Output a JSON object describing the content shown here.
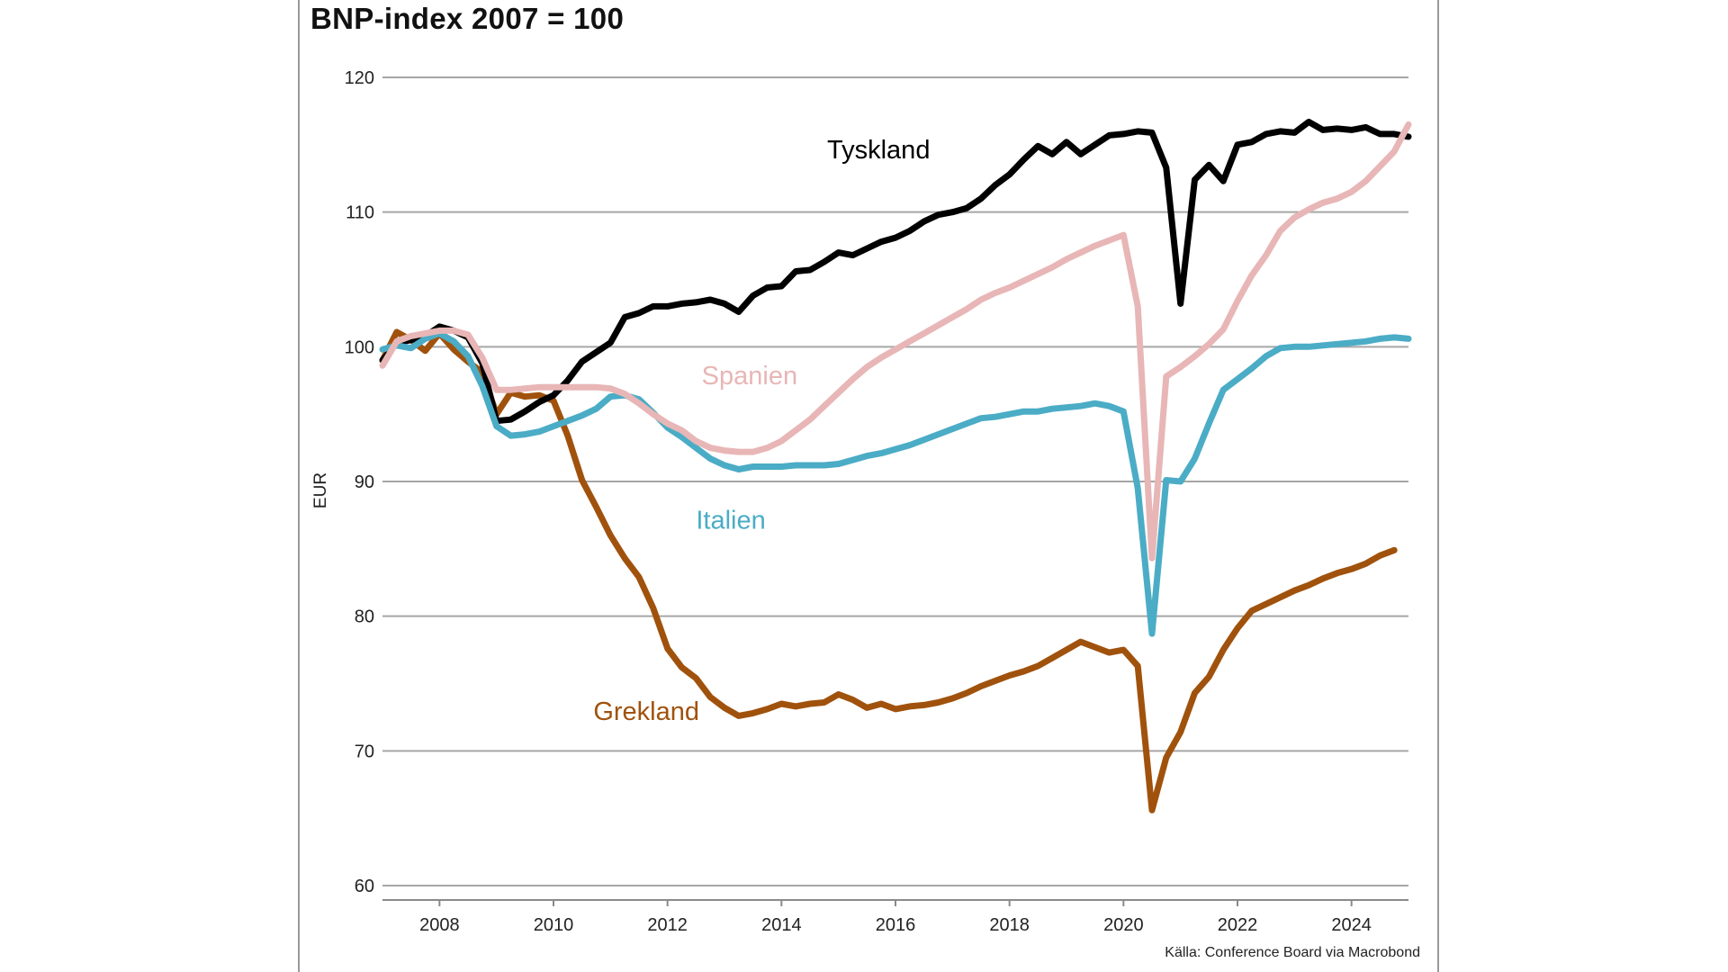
{
  "chart_data": {
    "type": "line",
    "title": "BNP-index 2007 = 100",
    "ylabel": "EUR",
    "xlabel": "",
    "source": "Källa: Conference Board via Macrobond",
    "xlim": [
      2007.0,
      2025.0
    ],
    "ylim": [
      60,
      120
    ],
    "yticks": [
      60,
      70,
      80,
      90,
      100,
      110,
      120
    ],
    "xticks": [
      2008,
      2010,
      2012,
      2014,
      2016,
      2018,
      2020,
      2022,
      2024
    ],
    "grid": true,
    "series": [
      {
        "name": "Tyskland",
        "color": "#000000",
        "label_at": [
          2014.8,
          114
        ],
        "points": [
          [
            2007.0,
            99.0
          ],
          [
            2007.25,
            100.3
          ],
          [
            2007.5,
            100.5
          ],
          [
            2007.75,
            100.8
          ],
          [
            2008.0,
            101.5
          ],
          [
            2008.25,
            101.2
          ],
          [
            2008.5,
            100.7
          ],
          [
            2008.75,
            98.8
          ],
          [
            2009.0,
            94.5
          ],
          [
            2009.25,
            94.6
          ],
          [
            2009.5,
            95.2
          ],
          [
            2009.75,
            95.9
          ],
          [
            2010.0,
            96.4
          ],
          [
            2010.25,
            97.5
          ],
          [
            2010.5,
            98.9
          ],
          [
            2010.75,
            99.6
          ],
          [
            2011.0,
            100.3
          ],
          [
            2011.25,
            102.2
          ],
          [
            2011.5,
            102.5
          ],
          [
            2011.75,
            103.0
          ],
          [
            2012.0,
            103.0
          ],
          [
            2012.25,
            103.2
          ],
          [
            2012.5,
            103.3
          ],
          [
            2012.75,
            103.5
          ],
          [
            2013.0,
            103.2
          ],
          [
            2013.25,
            102.6
          ],
          [
            2013.5,
            103.8
          ],
          [
            2013.75,
            104.4
          ],
          [
            2014.0,
            104.5
          ],
          [
            2014.25,
            105.6
          ],
          [
            2014.5,
            105.7
          ],
          [
            2014.75,
            106.3
          ],
          [
            2015.0,
            107.0
          ],
          [
            2015.25,
            106.8
          ],
          [
            2015.5,
            107.3
          ],
          [
            2015.75,
            107.8
          ],
          [
            2016.0,
            108.1
          ],
          [
            2016.25,
            108.6
          ],
          [
            2016.5,
            109.3
          ],
          [
            2016.75,
            109.8
          ],
          [
            2017.0,
            110.0
          ],
          [
            2017.25,
            110.3
          ],
          [
            2017.5,
            111.0
          ],
          [
            2017.75,
            112.0
          ],
          [
            2018.0,
            112.8
          ],
          [
            2018.25,
            113.9
          ],
          [
            2018.5,
            114.9
          ],
          [
            2018.75,
            114.3
          ],
          [
            2019.0,
            115.2
          ],
          [
            2019.25,
            114.3
          ],
          [
            2019.5,
            115.0
          ],
          [
            2019.75,
            115.7
          ],
          [
            2020.0,
            115.8
          ],
          [
            2020.25,
            116.0
          ],
          [
            2020.5,
            115.9
          ],
          [
            2020.75,
            113.3
          ],
          [
            2021.0,
            103.2
          ],
          [
            2021.25,
            112.4
          ],
          [
            2021.5,
            113.5
          ],
          [
            2021.75,
            112.3
          ],
          [
            2022.0,
            115.0
          ],
          [
            2022.25,
            115.2
          ],
          [
            2022.5,
            115.8
          ],
          [
            2022.75,
            116.0
          ],
          [
            2023.0,
            115.9
          ],
          [
            2023.25,
            116.7
          ],
          [
            2023.5,
            116.1
          ],
          [
            2023.75,
            116.2
          ],
          [
            2024.0,
            116.1
          ],
          [
            2024.25,
            116.3
          ],
          [
            2024.5,
            115.8
          ],
          [
            2024.75,
            115.8
          ],
          [
            2025.0,
            115.6
          ]
        ]
      },
      {
        "name": "Spanien",
        "color": "#e8b6b6",
        "label_at": [
          2012.6,
          97.2
        ],
        "points": [
          [
            2007.0,
            98.6
          ],
          [
            2007.25,
            100.4
          ],
          [
            2007.5,
            100.8
          ],
          [
            2007.75,
            101.0
          ],
          [
            2008.0,
            101.2
          ],
          [
            2008.25,
            101.2
          ],
          [
            2008.5,
            100.9
          ],
          [
            2008.75,
            99.2
          ],
          [
            2009.0,
            96.8
          ],
          [
            2009.25,
            96.8
          ],
          [
            2009.5,
            96.9
          ],
          [
            2009.75,
            97.0
          ],
          [
            2010.0,
            97.0
          ],
          [
            2010.25,
            97.0
          ],
          [
            2010.5,
            97.0
          ],
          [
            2010.75,
            97.0
          ],
          [
            2011.0,
            96.9
          ],
          [
            2011.25,
            96.5
          ],
          [
            2011.5,
            95.8
          ],
          [
            2011.75,
            95.0
          ],
          [
            2012.0,
            94.3
          ],
          [
            2012.25,
            93.8
          ],
          [
            2012.5,
            93.0
          ],
          [
            2012.75,
            92.5
          ],
          [
            2013.0,
            92.3
          ],
          [
            2013.25,
            92.2
          ],
          [
            2013.5,
            92.2
          ],
          [
            2013.75,
            92.5
          ],
          [
            2014.0,
            93.0
          ],
          [
            2014.25,
            93.8
          ],
          [
            2014.5,
            94.6
          ],
          [
            2014.75,
            95.6
          ],
          [
            2015.0,
            96.6
          ],
          [
            2015.25,
            97.6
          ],
          [
            2015.5,
            98.5
          ],
          [
            2015.75,
            99.2
          ],
          [
            2016.0,
            99.8
          ],
          [
            2016.25,
            100.4
          ],
          [
            2016.5,
            101.0
          ],
          [
            2016.75,
            101.6
          ],
          [
            2017.0,
            102.2
          ],
          [
            2017.25,
            102.8
          ],
          [
            2017.5,
            103.5
          ],
          [
            2017.75,
            104.0
          ],
          [
            2018.0,
            104.4
          ],
          [
            2018.25,
            104.9
          ],
          [
            2018.5,
            105.4
          ],
          [
            2018.75,
            105.9
          ],
          [
            2019.0,
            106.5
          ],
          [
            2019.25,
            107.0
          ],
          [
            2019.5,
            107.5
          ],
          [
            2019.75,
            107.9
          ],
          [
            2020.0,
            108.3
          ],
          [
            2020.25,
            103.0
          ],
          [
            2020.5,
            84.3
          ],
          [
            2020.75,
            97.8
          ],
          [
            2021.0,
            98.5
          ],
          [
            2021.25,
            99.3
          ],
          [
            2021.5,
            100.2
          ],
          [
            2021.75,
            101.3
          ],
          [
            2022.0,
            103.4
          ],
          [
            2022.25,
            105.3
          ],
          [
            2022.5,
            106.8
          ],
          [
            2022.75,
            108.6
          ],
          [
            2023.0,
            109.6
          ],
          [
            2023.25,
            110.2
          ],
          [
            2023.5,
            110.7
          ],
          [
            2023.75,
            111.0
          ],
          [
            2024.0,
            111.5
          ],
          [
            2024.25,
            112.3
          ],
          [
            2024.5,
            113.4
          ],
          [
            2024.75,
            114.5
          ],
          [
            2025.0,
            116.5
          ]
        ]
      },
      {
        "name": "Italien",
        "color": "#4bacc6",
        "label_at": [
          2012.5,
          86.5
        ],
        "points": [
          [
            2007.0,
            99.8
          ],
          [
            2007.25,
            100.1
          ],
          [
            2007.5,
            99.9
          ],
          [
            2007.75,
            100.6
          ],
          [
            2008.0,
            101.0
          ],
          [
            2008.25,
            100.4
          ],
          [
            2008.5,
            99.3
          ],
          [
            2008.75,
            97.1
          ],
          [
            2009.0,
            94.1
          ],
          [
            2009.25,
            93.4
          ],
          [
            2009.5,
            93.5
          ],
          [
            2009.75,
            93.7
          ],
          [
            2010.0,
            94.1
          ],
          [
            2010.25,
            94.5
          ],
          [
            2010.5,
            94.9
          ],
          [
            2010.75,
            95.4
          ],
          [
            2011.0,
            96.3
          ],
          [
            2011.25,
            96.4
          ],
          [
            2011.5,
            96.1
          ],
          [
            2011.75,
            95.1
          ],
          [
            2012.0,
            94.0
          ],
          [
            2012.25,
            93.3
          ],
          [
            2012.5,
            92.5
          ],
          [
            2012.75,
            91.7
          ],
          [
            2013.0,
            91.2
          ],
          [
            2013.25,
            90.9
          ],
          [
            2013.5,
            91.1
          ],
          [
            2013.75,
            91.1
          ],
          [
            2014.0,
            91.1
          ],
          [
            2014.25,
            91.2
          ],
          [
            2014.5,
            91.2
          ],
          [
            2014.75,
            91.2
          ],
          [
            2015.0,
            91.3
          ],
          [
            2015.25,
            91.6
          ],
          [
            2015.5,
            91.9
          ],
          [
            2015.75,
            92.1
          ],
          [
            2016.0,
            92.4
          ],
          [
            2016.25,
            92.7
          ],
          [
            2016.5,
            93.1
          ],
          [
            2016.75,
            93.5
          ],
          [
            2017.0,
            93.9
          ],
          [
            2017.25,
            94.3
          ],
          [
            2017.5,
            94.7
          ],
          [
            2017.75,
            94.8
          ],
          [
            2018.0,
            95.0
          ],
          [
            2018.25,
            95.2
          ],
          [
            2018.5,
            95.2
          ],
          [
            2018.75,
            95.4
          ],
          [
            2019.0,
            95.5
          ],
          [
            2019.25,
            95.6
          ],
          [
            2019.5,
            95.8
          ],
          [
            2019.75,
            95.6
          ],
          [
            2020.0,
            95.2
          ],
          [
            2020.25,
            89.5
          ],
          [
            2020.5,
            78.7
          ],
          [
            2020.75,
            90.1
          ],
          [
            2021.0,
            90.0
          ],
          [
            2021.25,
            91.7
          ],
          [
            2021.5,
            94.3
          ],
          [
            2021.75,
            96.8
          ],
          [
            2022.0,
            97.6
          ],
          [
            2022.25,
            98.4
          ],
          [
            2022.5,
            99.3
          ],
          [
            2022.75,
            99.9
          ],
          [
            2023.0,
            100.0
          ],
          [
            2023.25,
            100.0
          ],
          [
            2023.5,
            100.1
          ],
          [
            2023.75,
            100.2
          ],
          [
            2024.0,
            100.3
          ],
          [
            2024.25,
            100.4
          ],
          [
            2024.5,
            100.6
          ],
          [
            2024.75,
            100.7
          ],
          [
            2025.0,
            100.6
          ]
        ]
      },
      {
        "name": "Grekland",
        "color": "#a0520d",
        "label_at": [
          2010.7,
          72.3
        ],
        "points": [
          [
            2007.0,
            99.0
          ],
          [
            2007.25,
            101.1
          ],
          [
            2007.5,
            100.5
          ],
          [
            2007.75,
            99.7
          ],
          [
            2008.0,
            101.0
          ],
          [
            2008.25,
            99.8
          ],
          [
            2008.5,
            98.9
          ],
          [
            2008.75,
            98.1
          ],
          [
            2009.0,
            95.0
          ],
          [
            2009.25,
            96.6
          ],
          [
            2009.5,
            96.3
          ],
          [
            2009.75,
            96.4
          ],
          [
            2010.0,
            96.0
          ],
          [
            2010.25,
            93.4
          ],
          [
            2010.5,
            90.1
          ],
          [
            2010.75,
            88.1
          ],
          [
            2011.0,
            86.0
          ],
          [
            2011.25,
            84.3
          ],
          [
            2011.5,
            82.9
          ],
          [
            2011.75,
            80.6
          ],
          [
            2012.0,
            77.6
          ],
          [
            2012.25,
            76.2
          ],
          [
            2012.5,
            75.4
          ],
          [
            2012.75,
            74.0
          ],
          [
            2013.0,
            73.2
          ],
          [
            2013.25,
            72.6
          ],
          [
            2013.5,
            72.8
          ],
          [
            2013.75,
            73.1
          ],
          [
            2014.0,
            73.5
          ],
          [
            2014.25,
            73.3
          ],
          [
            2014.5,
            73.5
          ],
          [
            2014.75,
            73.6
          ],
          [
            2015.0,
            74.2
          ],
          [
            2015.25,
            73.8
          ],
          [
            2015.5,
            73.2
          ],
          [
            2015.75,
            73.5
          ],
          [
            2016.0,
            73.1
          ],
          [
            2016.25,
            73.3
          ],
          [
            2016.5,
            73.4
          ],
          [
            2016.75,
            73.6
          ],
          [
            2017.0,
            73.9
          ],
          [
            2017.25,
            74.3
          ],
          [
            2017.5,
            74.8
          ],
          [
            2017.75,
            75.2
          ],
          [
            2018.0,
            75.6
          ],
          [
            2018.25,
            75.9
          ],
          [
            2018.5,
            76.3
          ],
          [
            2018.75,
            76.9
          ],
          [
            2019.0,
            77.5
          ],
          [
            2019.25,
            78.1
          ],
          [
            2019.5,
            77.7
          ],
          [
            2019.75,
            77.3
          ],
          [
            2020.0,
            77.5
          ],
          [
            2020.25,
            76.3
          ],
          [
            2020.5,
            65.6
          ],
          [
            2020.75,
            69.5
          ],
          [
            2021.0,
            71.4
          ],
          [
            2021.25,
            74.3
          ],
          [
            2021.5,
            75.5
          ],
          [
            2021.75,
            77.5
          ],
          [
            2022.0,
            79.1
          ],
          [
            2022.25,
            80.4
          ],
          [
            2022.5,
            80.9
          ],
          [
            2022.75,
            81.4
          ],
          [
            2023.0,
            81.9
          ],
          [
            2023.25,
            82.3
          ],
          [
            2023.5,
            82.8
          ],
          [
            2023.75,
            83.2
          ],
          [
            2024.0,
            83.5
          ],
          [
            2024.25,
            83.9
          ],
          [
            2024.5,
            84.5
          ],
          [
            2024.75,
            84.9
          ]
        ]
      }
    ]
  }
}
